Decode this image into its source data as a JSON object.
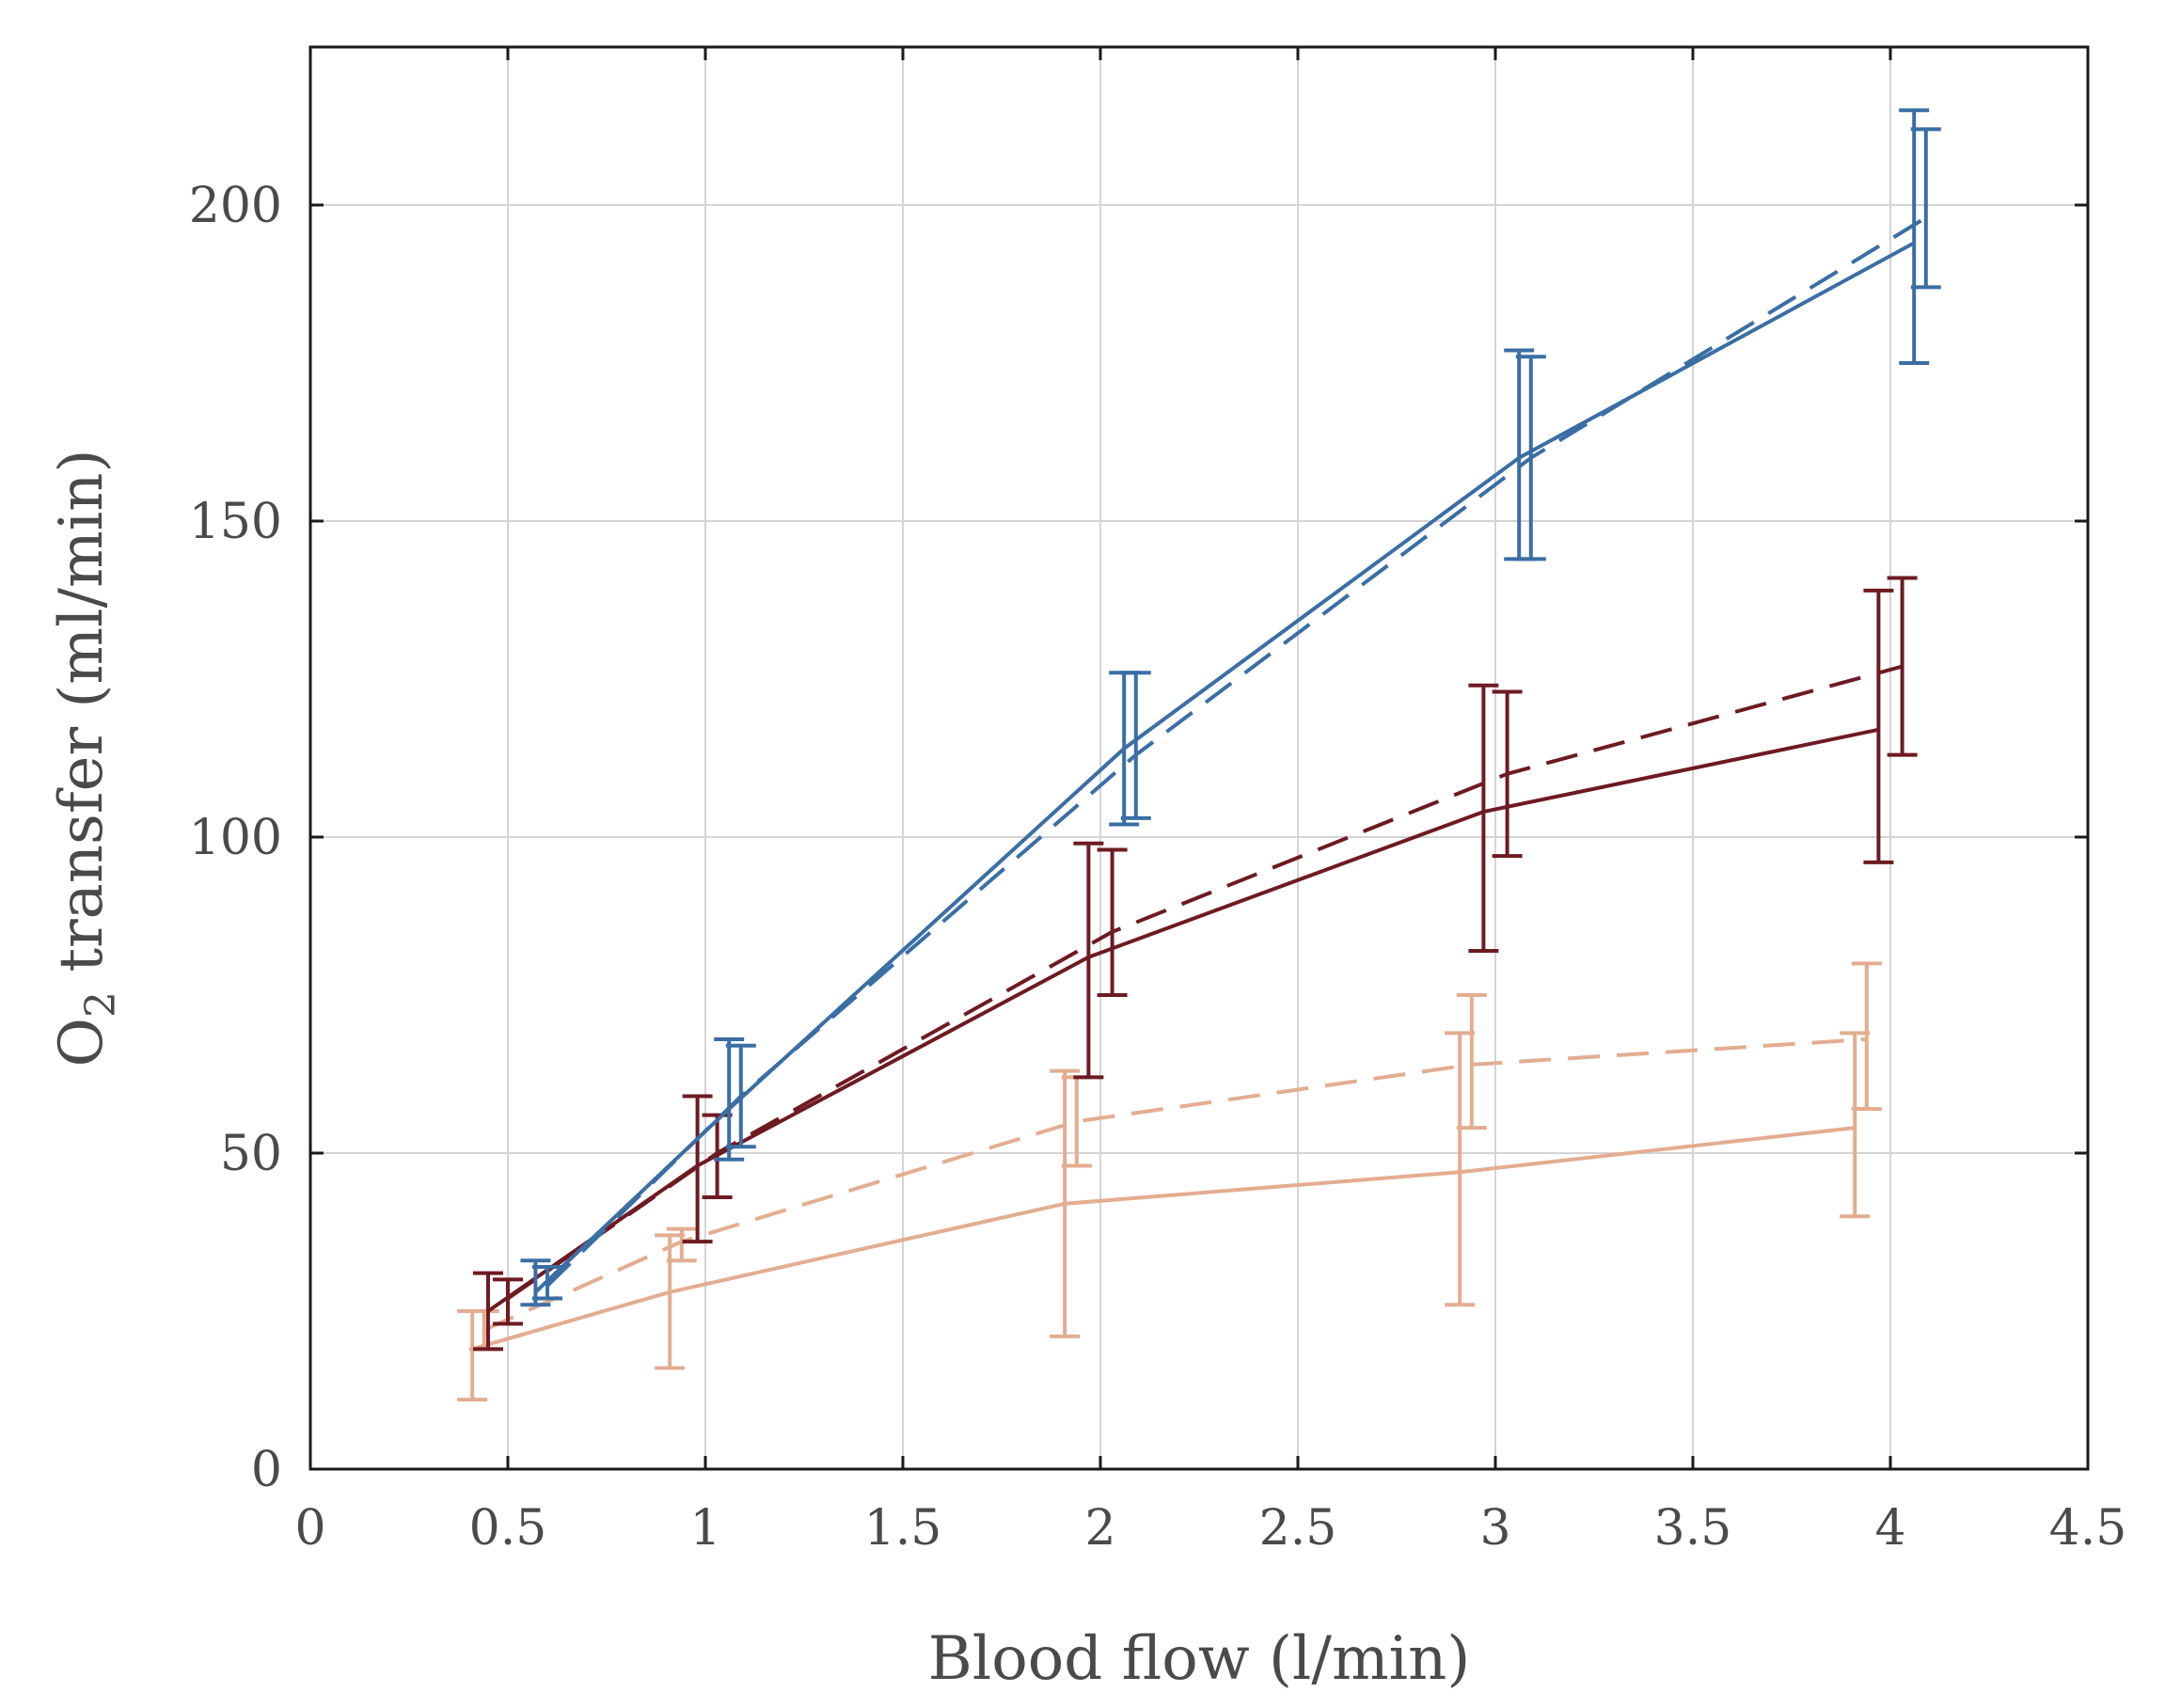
{
  "chart_data": {
    "type": "line",
    "title": "",
    "xlabel": "Blood flow (l/min)",
    "ylabel_main": "O",
    "ylabel_sub": "2",
    "ylabel_rest": " transfer (ml/min)",
    "xlim": [
      0,
      4.5
    ],
    "ylim": [
      0,
      225
    ],
    "xticks": [
      0,
      0.5,
      1,
      1.5,
      2,
      2.5,
      3,
      3.5,
      4,
      4.5
    ],
    "xtick_labels": [
      "0",
      "0.5",
      "1",
      "1.5",
      "2",
      "2.5",
      "3",
      "3.5",
      "4",
      "4.5"
    ],
    "yticks": [
      0,
      50,
      100,
      150,
      200
    ],
    "ytick_labels": [
      "0",
      "50",
      "100",
      "150",
      "200"
    ],
    "grid": true,
    "series": [
      {
        "name": "blue-solid",
        "color": "#3a6ea5",
        "style": "solid",
        "x": [
          0.57,
          1.06,
          2.06,
          3.06,
          4.06
        ],
        "y": [
          28,
          57,
          114,
          160,
          194
        ],
        "err_low": [
          26,
          49,
          102,
          144,
          175
        ],
        "err_high": [
          33,
          68,
          126,
          177,
          215
        ]
      },
      {
        "name": "blue-dashed",
        "color": "#3a6ea5",
        "style": "dashed",
        "x": [
          0.6,
          1.09,
          2.09,
          3.09,
          4.09
        ],
        "y": [
          29,
          59,
          113,
          160,
          198
        ],
        "err_low": [
          27,
          51,
          103,
          144,
          187
        ],
        "err_high": [
          32,
          67,
          126,
          176,
          212
        ]
      },
      {
        "name": "darkred-solid",
        "color": "#6e1a22",
        "style": "solid",
        "x": [
          0.45,
          0.98,
          1.97,
          2.97,
          3.97
        ],
        "y": [
          25,
          48,
          81,
          104,
          117
        ],
        "err_low": [
          19,
          36,
          62,
          82,
          96
        ],
        "err_high": [
          31,
          59,
          99,
          124,
          139
        ]
      },
      {
        "name": "darkred-dashed",
        "color": "#6e1a22",
        "style": "dashed",
        "x": [
          0.5,
          1.03,
          2.03,
          3.03,
          4.03
        ],
        "y": [
          27,
          50,
          85,
          110,
          127
        ],
        "err_low": [
          23,
          43,
          75,
          97,
          113
        ],
        "err_high": [
          30,
          56,
          98,
          123,
          141
        ]
      },
      {
        "name": "peach-solid",
        "color": "#e3ad90",
        "style": "solid",
        "x": [
          0.41,
          0.91,
          1.91,
          2.91,
          3.91
        ],
        "y": [
          19,
          28,
          42,
          47,
          54
        ],
        "err_low": [
          11,
          16,
          21,
          26,
          40
        ],
        "err_high": [
          25,
          37,
          63,
          69,
          69
        ]
      },
      {
        "name": "peach-dashed",
        "color": "#e3ad90",
        "style": "dashed",
        "x": [
          0.44,
          0.94,
          1.94,
          2.94,
          3.94
        ],
        "y": [
          22,
          36,
          55,
          64,
          68
        ],
        "err_low": [
          19,
          33,
          48,
          54,
          57
        ],
        "err_high": [
          25,
          38,
          62,
          75,
          80
        ]
      }
    ]
  }
}
